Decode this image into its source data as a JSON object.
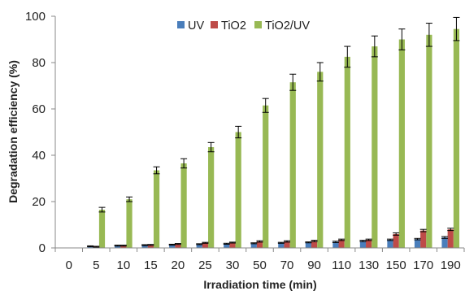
{
  "chart_data": {
    "type": "bar",
    "categories": [
      "0",
      "5",
      "10",
      "15",
      "20",
      "25",
      "30",
      "50",
      "70",
      "90",
      "110",
      "130",
      "150",
      "170",
      "190"
    ],
    "series": [
      {
        "name": "UV",
        "color": "#4a7ebb",
        "values": [
          0,
          0.7,
          1.0,
          1.2,
          1.4,
          1.6,
          1.8,
          2.0,
          2.2,
          2.4,
          2.6,
          3.0,
          3.5,
          3.8,
          4.5
        ],
        "errors": [
          0,
          0.2,
          0.2,
          0.2,
          0.2,
          0.2,
          0.2,
          0.2,
          0.2,
          0.2,
          0.3,
          0.3,
          0.3,
          0.3,
          0.4
        ]
      },
      {
        "name": "TiO2",
        "color": "#be4b48",
        "values": [
          0,
          0.5,
          1.0,
          1.3,
          1.7,
          2.2,
          2.3,
          2.8,
          2.8,
          3.0,
          3.5,
          3.5,
          6.0,
          7.5,
          8.0
        ],
        "errors": [
          0,
          0.2,
          0.2,
          0.2,
          0.2,
          0.2,
          0.2,
          0.3,
          0.3,
          0.3,
          0.3,
          0.3,
          0.5,
          0.5,
          0.5
        ]
      },
      {
        "name": "TiO2/UV",
        "color": "#98b954",
        "values": [
          0,
          16.5,
          21.0,
          33.5,
          36.5,
          43.5,
          50.0,
          61.5,
          71.5,
          76.0,
          82.5,
          87.0,
          90.0,
          92.0,
          94.5
        ],
        "errors": [
          0,
          1.0,
          1.0,
          1.5,
          2.0,
          2.0,
          2.5,
          3.0,
          3.5,
          4.0,
          4.5,
          4.5,
          4.5,
          5.0,
          5.0
        ]
      }
    ],
    "xlabel": "Irradiation time (min)",
    "ylabel": "Degradation efficiency (%)",
    "ylim": [
      0,
      100
    ],
    "yticks": [
      "0",
      "20",
      "40",
      "60",
      "80",
      "100"
    ],
    "grid": false,
    "legend_position": "top-center"
  }
}
